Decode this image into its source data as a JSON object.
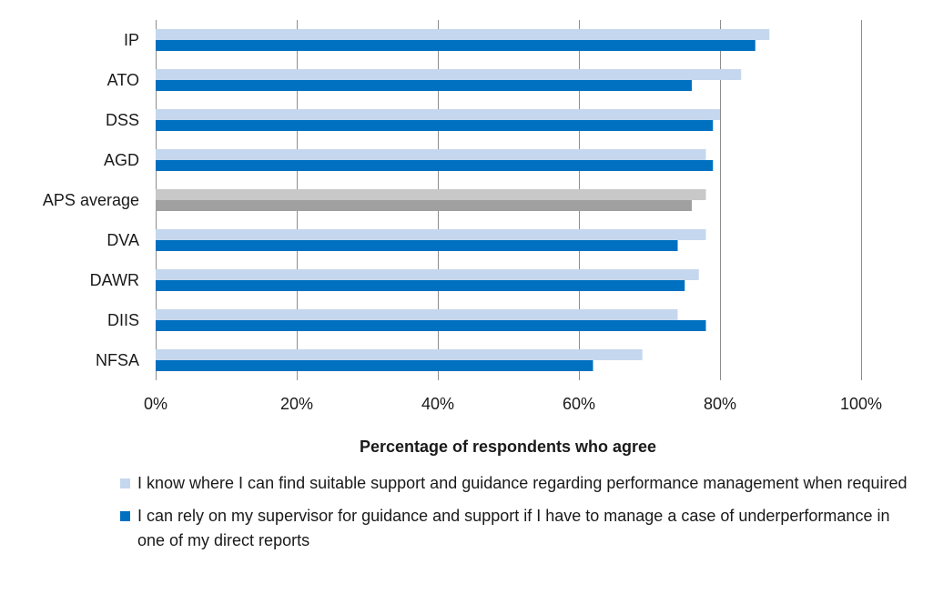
{
  "chart_data": {
    "type": "bar",
    "orientation": "horizontal",
    "categories": [
      "IP",
      "ATO",
      "DSS",
      "AGD",
      "APS average",
      "DVA",
      "DAWR",
      "DIIS",
      "NFSA"
    ],
    "series": [
      {
        "name": "I know where I can find suitable support and guidance regarding performance management when required",
        "color": "#c5d7ee",
        "values": [
          87,
          83,
          80,
          78,
          78,
          78,
          77,
          74,
          69
        ]
      },
      {
        "name": "I can rely on my supervisor for guidance and support if I have to manage a case of underperformance in one of my direct reports",
        "color": "#0070c0",
        "values": [
          85,
          76,
          79,
          79,
          76,
          74,
          75,
          78,
          62
        ]
      }
    ],
    "highlight": {
      "category": "APS average",
      "colors": [
        "#c8c8c8",
        "#a0a0a0"
      ]
    },
    "xlabel": "Percentage of respondents who agree",
    "ylabel": "",
    "xlim": [
      0,
      100
    ],
    "xticks": [
      "0%",
      "20%",
      "40%",
      "60%",
      "80%",
      "100%"
    ],
    "grid": "vertical",
    "legend": "bottom"
  }
}
